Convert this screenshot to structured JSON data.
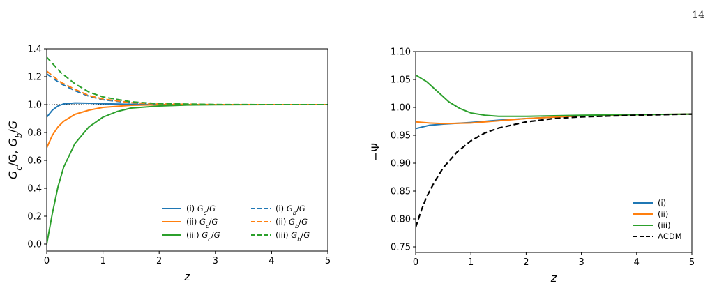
{
  "page": {
    "number": "14"
  },
  "colors": {
    "i": "#1f77b4",
    "ii": "#ff7f0e",
    "iii": "#2ca02c",
    "lcdm": "#000000"
  },
  "chart_data": [
    {
      "type": "line",
      "xlabel": "z",
      "ylabel": "G_c/G, G_b/G",
      "xlim": [
        0,
        5
      ],
      "ylim": [
        -0.05,
        1.4
      ],
      "xticks": [
        0,
        1,
        2,
        3,
        4,
        5
      ],
      "yticks": [
        0.0,
        0.2,
        0.4,
        0.6,
        0.8,
        1.0,
        1.2,
        1.4
      ],
      "ytick_labels": [
        "0.0",
        "0.2",
        "0.4",
        "0.6",
        "0.8",
        "1.0",
        "1.2",
        "1.4"
      ],
      "reference_line": {
        "y": 1.0,
        "style": "dotted"
      },
      "legend_position": "lower-right",
      "legend_columns": 2,
      "series": [
        {
          "name": "(i) G_c/G",
          "color": "#1f77b4",
          "style": "solid",
          "x": [
            0,
            0.1,
            0.2,
            0.3,
            0.5,
            0.75,
            1,
            1.5,
            2,
            3,
            4,
            5
          ],
          "y": [
            0.91,
            0.96,
            0.99,
            1.005,
            1.012,
            1.01,
            1.006,
            1.002,
            1.0,
            1.0,
            1.0,
            1.0
          ]
        },
        {
          "name": "(ii) G_c/G",
          "color": "#ff7f0e",
          "style": "solid",
          "x": [
            0,
            0.1,
            0.2,
            0.3,
            0.5,
            0.75,
            1,
            1.5,
            2,
            3,
            4,
            5
          ],
          "y": [
            0.69,
            0.78,
            0.84,
            0.88,
            0.93,
            0.96,
            0.98,
            0.995,
            0.999,
            1.0,
            1.0,
            1.0
          ]
        },
        {
          "name": "(iii) G_c/G",
          "color": "#2ca02c",
          "style": "solid",
          "x": [
            0,
            0.1,
            0.2,
            0.3,
            0.5,
            0.75,
            1,
            1.25,
            1.5,
            2,
            2.5,
            3,
            4,
            5
          ],
          "y": [
            0.0,
            0.22,
            0.41,
            0.55,
            0.72,
            0.84,
            0.91,
            0.95,
            0.975,
            0.99,
            0.997,
            0.999,
            1.0,
            1.0
          ]
        },
        {
          "name": "(i) G_b/G",
          "color": "#1f77b4",
          "style": "dashed",
          "x": [
            0,
            0.25,
            0.5,
            0.75,
            1,
            1.5,
            2,
            3,
            4,
            5
          ],
          "y": [
            1.22,
            1.15,
            1.1,
            1.06,
            1.035,
            1.012,
            1.004,
            1.0,
            1.0,
            1.0
          ]
        },
        {
          "name": "(ii) G_b/G",
          "color": "#ff7f0e",
          "style": "dashed",
          "x": [
            0,
            0.25,
            0.5,
            0.75,
            1,
            1.5,
            2,
            3,
            4,
            5
          ],
          "y": [
            1.24,
            1.16,
            1.11,
            1.065,
            1.04,
            1.014,
            1.005,
            1.0,
            1.0,
            1.0
          ]
        },
        {
          "name": "(iii) G_b/G",
          "color": "#2ca02c",
          "style": "dashed",
          "x": [
            0,
            0.25,
            0.5,
            0.75,
            1,
            1.5,
            2,
            3,
            4,
            5
          ],
          "y": [
            1.34,
            1.23,
            1.15,
            1.09,
            1.055,
            1.02,
            1.007,
            1.001,
            1.0,
            1.0
          ]
        }
      ]
    },
    {
      "type": "line",
      "xlabel": "z",
      "ylabel": "−Ψ",
      "xlim": [
        0,
        5
      ],
      "ylim": [
        0.74,
        1.1
      ],
      "xticks": [
        0,
        1,
        2,
        3,
        4,
        5
      ],
      "yticks": [
        0.75,
        0.8,
        0.85,
        0.9,
        0.95,
        1.0,
        1.05,
        1.1
      ],
      "ytick_labels": [
        "0.75",
        "0.80",
        "0.85",
        "0.90",
        "0.95",
        "1.00",
        "1.05",
        "1.10"
      ],
      "legend_position": "lower-right",
      "legend_columns": 1,
      "series": [
        {
          "name": "(i)",
          "color": "#1f77b4",
          "style": "solid",
          "x": [
            0,
            0.25,
            0.5,
            1,
            1.5,
            2,
            3,
            4,
            5
          ],
          "y": [
            0.962,
            0.968,
            0.97,
            0.973,
            0.977,
            0.98,
            0.985,
            0.987,
            0.988
          ]
        },
        {
          "name": "(ii)",
          "color": "#ff7f0e",
          "style": "solid",
          "x": [
            0,
            0.25,
            0.5,
            1,
            1.5,
            2,
            3,
            4,
            5
          ],
          "y": [
            0.974,
            0.972,
            0.971,
            0.972,
            0.976,
            0.98,
            0.985,
            0.987,
            0.988
          ]
        },
        {
          "name": "(iii)",
          "color": "#2ca02c",
          "style": "solid",
          "x": [
            0,
            0.2,
            0.4,
            0.6,
            0.8,
            1,
            1.25,
            1.5,
            2,
            2.5,
            3,
            4,
            5
          ],
          "y": [
            1.058,
            1.046,
            1.028,
            1.01,
            0.998,
            0.99,
            0.986,
            0.984,
            0.984,
            0.985,
            0.986,
            0.987,
            0.988
          ]
        },
        {
          "name": "ΛCDM",
          "color": "#000000",
          "style": "dashed",
          "x": [
            0,
            0.1,
            0.2,
            0.35,
            0.5,
            0.75,
            1,
            1.25,
            1.5,
            2,
            2.5,
            3,
            4,
            5
          ],
          "y": [
            0.785,
            0.815,
            0.84,
            0.868,
            0.892,
            0.92,
            0.94,
            0.954,
            0.963,
            0.974,
            0.98,
            0.983,
            0.986,
            0.988
          ]
        }
      ]
    }
  ]
}
